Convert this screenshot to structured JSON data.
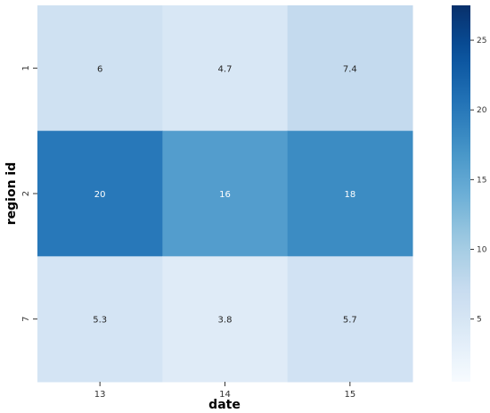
{
  "chart_data": {
    "type": "heatmap",
    "title": "",
    "xlabel": "date",
    "ylabel": "region id",
    "x_categories": [
      "13",
      "14",
      "15"
    ],
    "y_categories": [
      "1",
      "2",
      "7"
    ],
    "values": [
      [
        6,
        4.7,
        7.4
      ],
      [
        20,
        16,
        18
      ],
      [
        5.3,
        3.8,
        5.7
      ]
    ],
    "value_labels": [
      [
        "6",
        "4.7",
        "7.4"
      ],
      [
        "20",
        "16",
        "18"
      ],
      [
        "5.3",
        "3.8",
        "5.7"
      ]
    ],
    "colormap": "Blues",
    "colorbar": {
      "vmin": 0.5,
      "vmax": 27.5,
      "ticks": [
        5,
        10,
        15,
        20,
        25
      ],
      "tick_labels": [
        "5",
        "10",
        "15",
        "20",
        "25"
      ]
    },
    "grid": false,
    "legend": "colorbar-right"
  }
}
